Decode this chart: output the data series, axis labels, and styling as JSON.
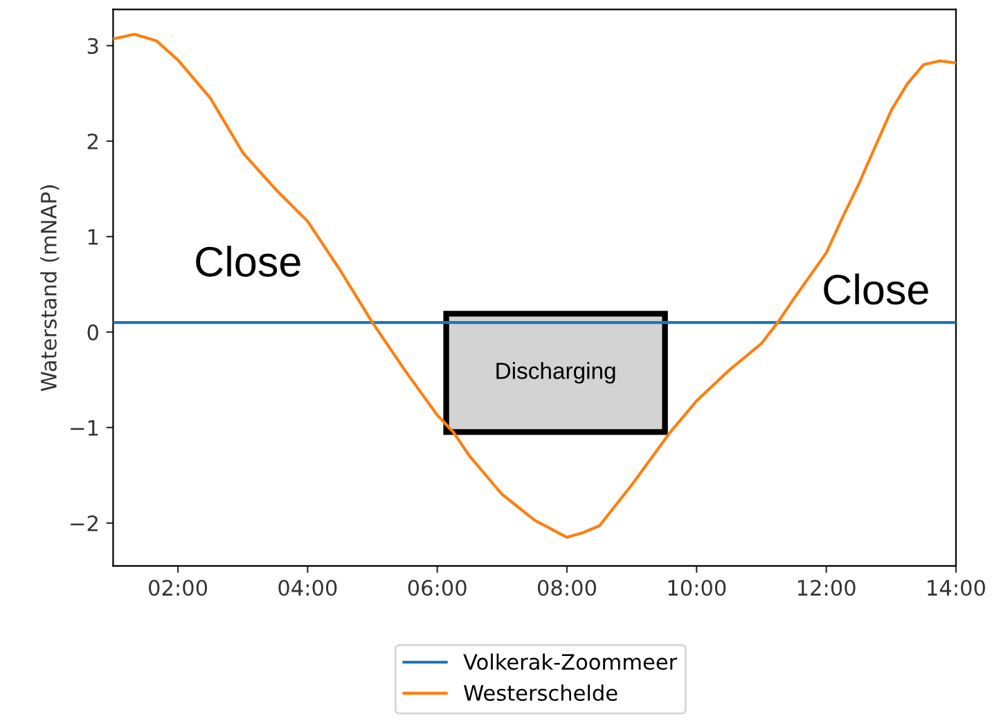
{
  "chart_data": {
    "type": "line",
    "ylabel": "Waterstand (mNAP)",
    "xlim": [
      1,
      14
    ],
    "xticks": [
      {
        "value": 2,
        "label": "02:00"
      },
      {
        "value": 4,
        "label": "04:00"
      },
      {
        "value": 6,
        "label": "06:00"
      },
      {
        "value": 8,
        "label": "08:00"
      },
      {
        "value": 10,
        "label": "10:00"
      },
      {
        "value": 12,
        "label": "12:00"
      },
      {
        "value": 14,
        "label": "14:00"
      }
    ],
    "ylim": [
      -2.45,
      3.38
    ],
    "yticks": [
      -2,
      -1,
      0,
      1,
      2,
      3
    ],
    "series": [
      {
        "name": "Volkerak-Zoommeer",
        "color": "#1f77b4",
        "x": [
          1,
          14
        ],
        "values": [
          0.1,
          0.1
        ]
      },
      {
        "name": "Westerschelde",
        "color": "#ff7f0e",
        "x": [
          1,
          1.33,
          1.67,
          2,
          2.5,
          3,
          3.5,
          4,
          4.5,
          5,
          5.5,
          6,
          6.25,
          6.5,
          7,
          7.5,
          8,
          8.25,
          8.5,
          9,
          9.58,
          10,
          10.5,
          11,
          11.25,
          11.5,
          12,
          12.25,
          12.5,
          13,
          13.25,
          13.5,
          13.75,
          14
        ],
        "values": [
          3.07,
          3.12,
          3.05,
          2.85,
          2.45,
          1.88,
          1.5,
          1.16,
          0.65,
          0.1,
          -0.4,
          -0.87,
          -1.05,
          -1.3,
          -1.7,
          -1.97,
          -2.15,
          -2.1,
          -2.03,
          -1.6,
          -1.06,
          -0.72,
          -0.4,
          -0.12,
          0.1,
          0.35,
          0.83,
          1.2,
          1.55,
          2.32,
          2.6,
          2.8,
          2.84,
          2.82
        ]
      }
    ],
    "annotations": [
      "Close",
      "Discharging",
      "Close"
    ],
    "legend": "bottom",
    "grid": false,
    "marker": "none",
    "line_style": "solid"
  }
}
